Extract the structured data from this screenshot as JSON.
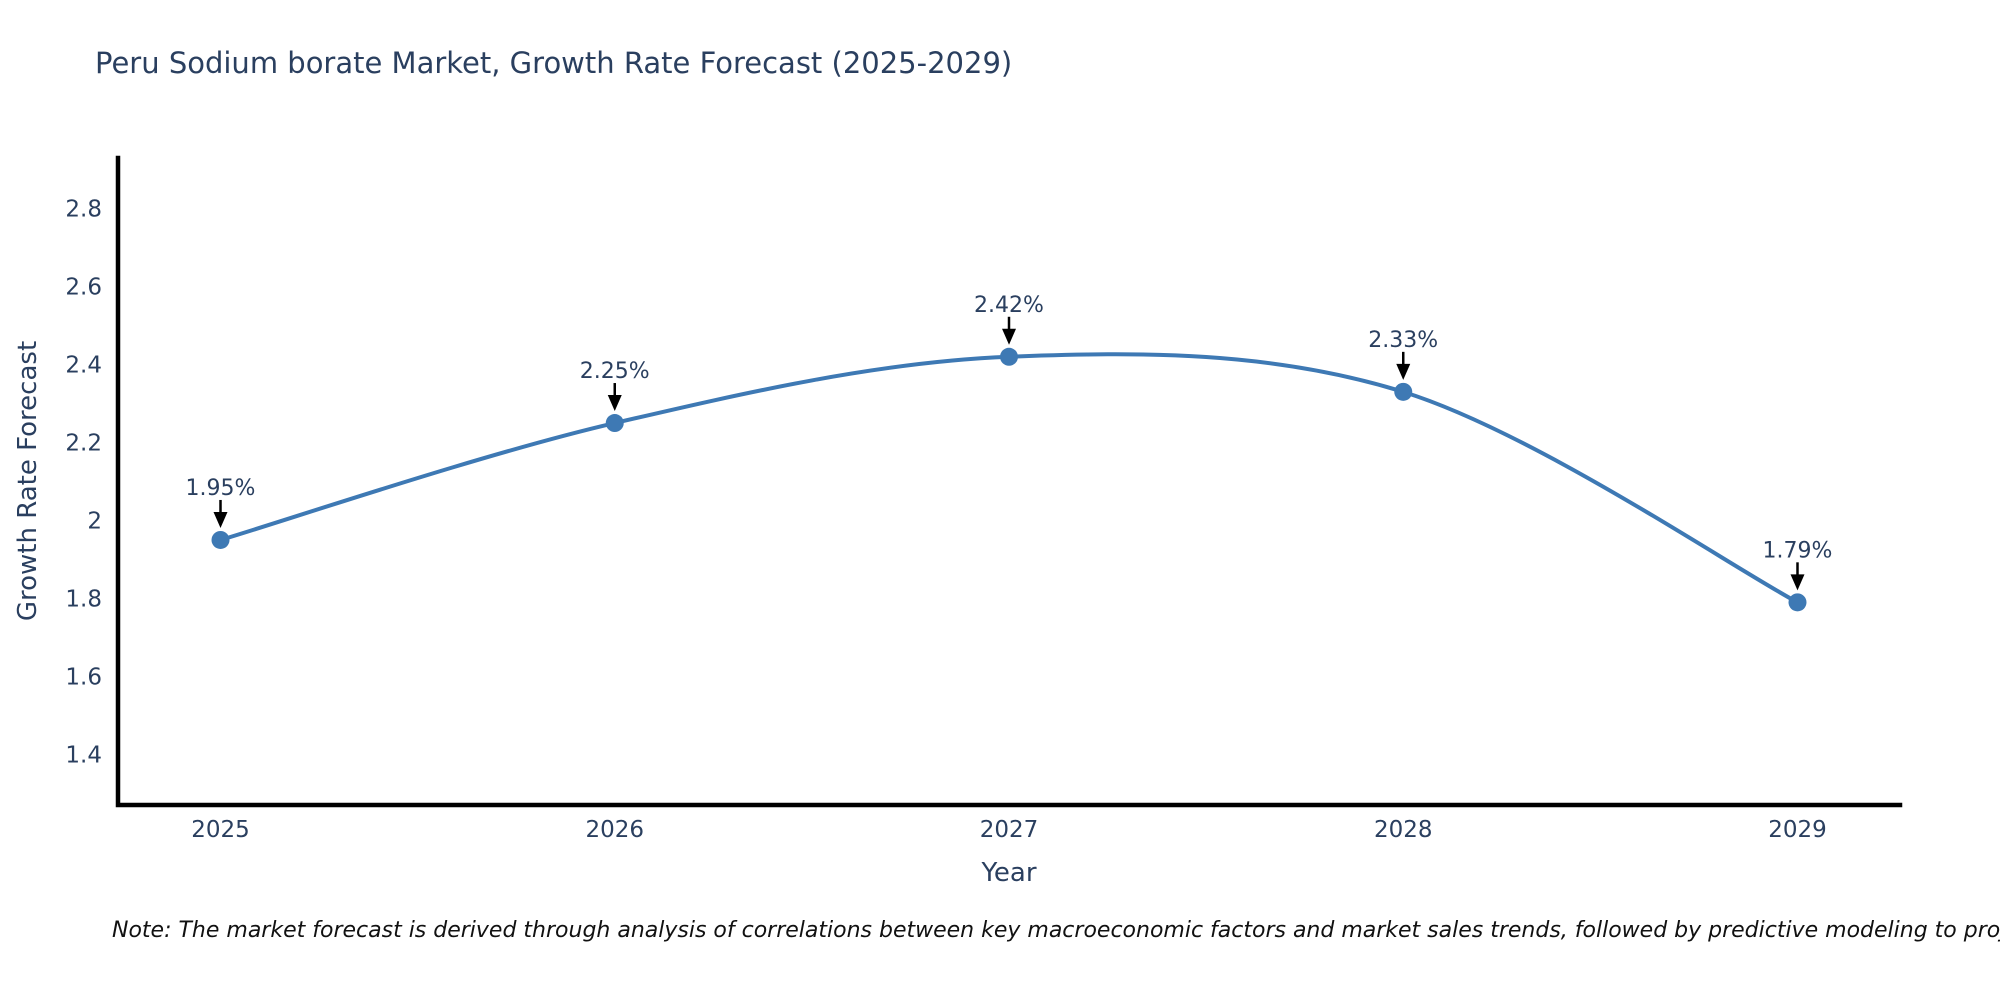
{
  "chart_data": {
    "type": "line",
    "title": "Peru Sodium borate Market, Growth Rate Forecast (2025-2029)",
    "xlabel": "Year",
    "ylabel": "Growth Rate Forecast",
    "x": [
      2025,
      2026,
      2027,
      2028,
      2029
    ],
    "values": [
      1.95,
      2.25,
      2.42,
      2.33,
      1.79
    ],
    "point_labels": [
      "1.95%",
      "2.25%",
      "2.42%",
      "2.33%",
      "1.79%"
    ],
    "x_tick_labels": [
      "2025",
      "2026",
      "2027",
      "2028",
      "2029"
    ],
    "y_ticks": [
      1.4,
      1.6,
      1.8,
      2,
      2.2,
      2.4,
      2.6,
      2.8
    ],
    "y_tick_labels": [
      "1.4",
      "1.6",
      "1.8",
      "2",
      "2.2",
      "2.4",
      "2.6",
      "2.8"
    ],
    "xlim": [
      2024.74,
      2029.26
    ],
    "ylim": [
      1.27,
      2.93
    ],
    "line_shape": "spline",
    "grid": false,
    "legend": false,
    "colors": {
      "line": "#3E79B4",
      "marker": "#3E79B4",
      "axis": "#000000",
      "tick_text": "#2a3f5f",
      "annotation_text": "#2a3f5f",
      "arrow": "#000000",
      "title_text": "#2a3f5f",
      "note_text": "#111111",
      "background": "#ffffff"
    }
  },
  "note": {
    "text": "Note: The market forecast is derived through analysis of correlations between key macroeconomic factors and market sales trends, followed by predictive modeling to project future sales"
  }
}
